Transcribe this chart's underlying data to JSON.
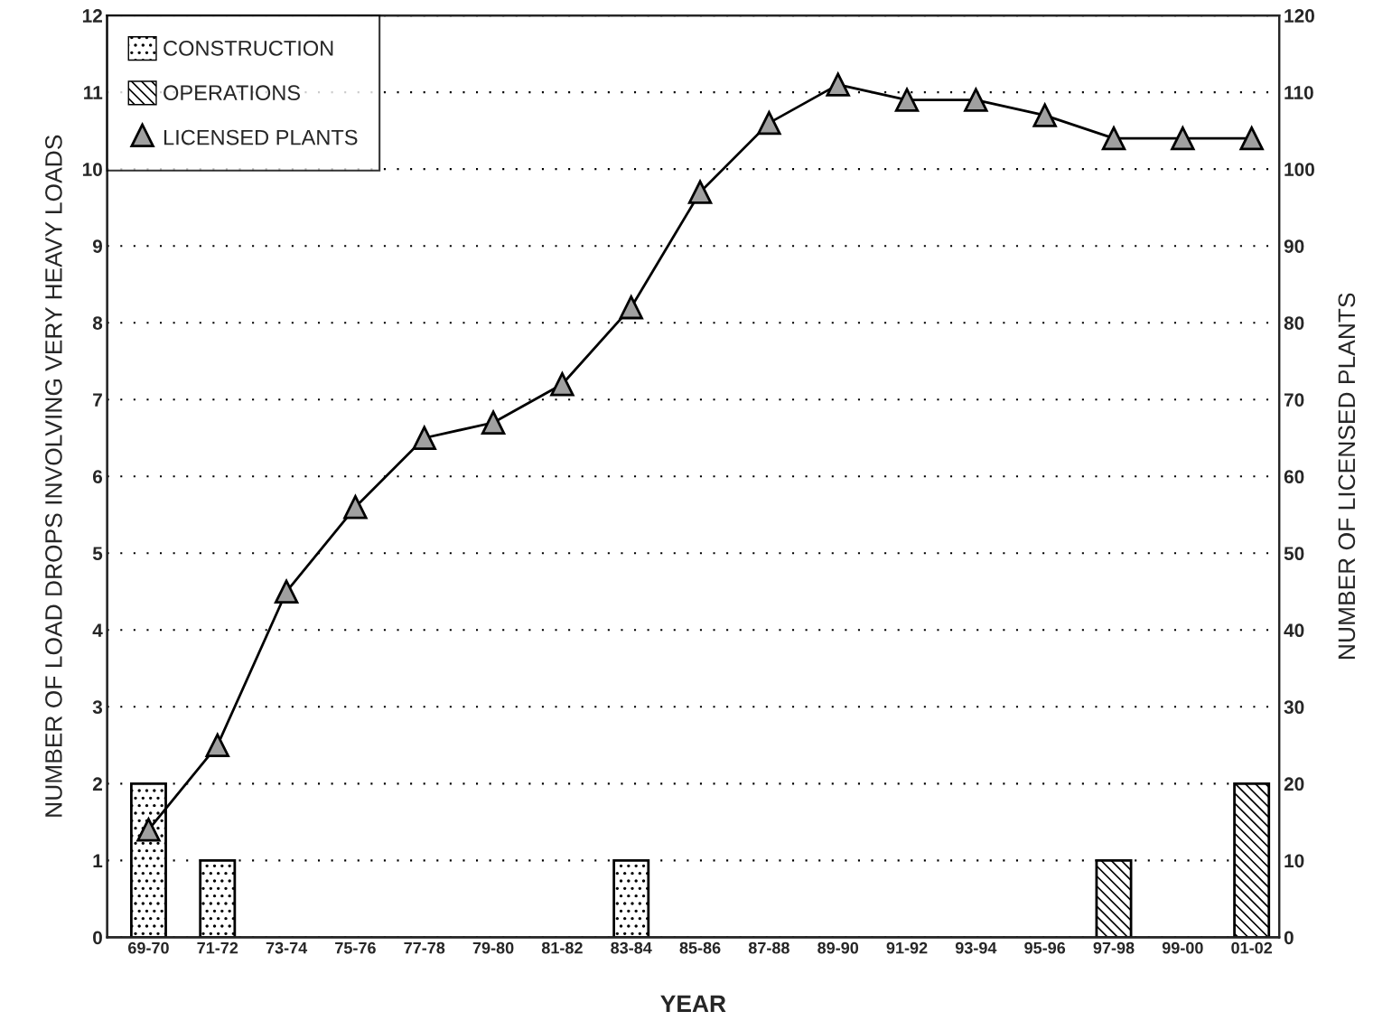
{
  "chart_data": {
    "type": "bar",
    "xlabel": "YEAR",
    "ylabel": "NUMBER OF LOAD DROPS INVOLVING VERY HEAVY LOADS",
    "y2label": "NUMBER OF LICENSED PLANTS",
    "categories": [
      "69-70",
      "71-72",
      "73-74",
      "75-76",
      "77-78",
      "79-80",
      "81-82",
      "83-84",
      "85-86",
      "87-88",
      "89-90",
      "91-92",
      "93-94",
      "95-96",
      "97-98",
      "99-00",
      "01-02"
    ],
    "series": [
      {
        "name": "CONSTRUCTION",
        "color": "#000000",
        "values": [
          2,
          1,
          null,
          null,
          null,
          null,
          null,
          1,
          null,
          null,
          null,
          null,
          null,
          null,
          null,
          null,
          null
        ]
      },
      {
        "name": "OPERATIONS",
        "color": "#000000",
        "values": [
          null,
          null,
          null,
          null,
          null,
          null,
          null,
          null,
          null,
          null,
          null,
          null,
          null,
          null,
          1,
          null,
          2
        ]
      },
      {
        "name": "LICENSED PLANTS",
        "type": "line",
        "axis": "y2",
        "color": "#a0a0a0",
        "marker": "triangle",
        "values": [
          14,
          25,
          45,
          56,
          65,
          67,
          72,
          82,
          97,
          106,
          111,
          109,
          109,
          107,
          104,
          104,
          104
        ]
      }
    ],
    "ylim": [
      0,
      12
    ],
    "yticks": [
      0,
      1,
      2,
      3,
      4,
      5,
      6,
      7,
      8,
      9,
      10,
      11,
      12
    ],
    "y2lim": [
      0,
      120
    ],
    "y2ticks": [
      0,
      10,
      20,
      30,
      40,
      50,
      60,
      70,
      80,
      90,
      100,
      110,
      120
    ],
    "grid": "y",
    "legend": "top left"
  }
}
